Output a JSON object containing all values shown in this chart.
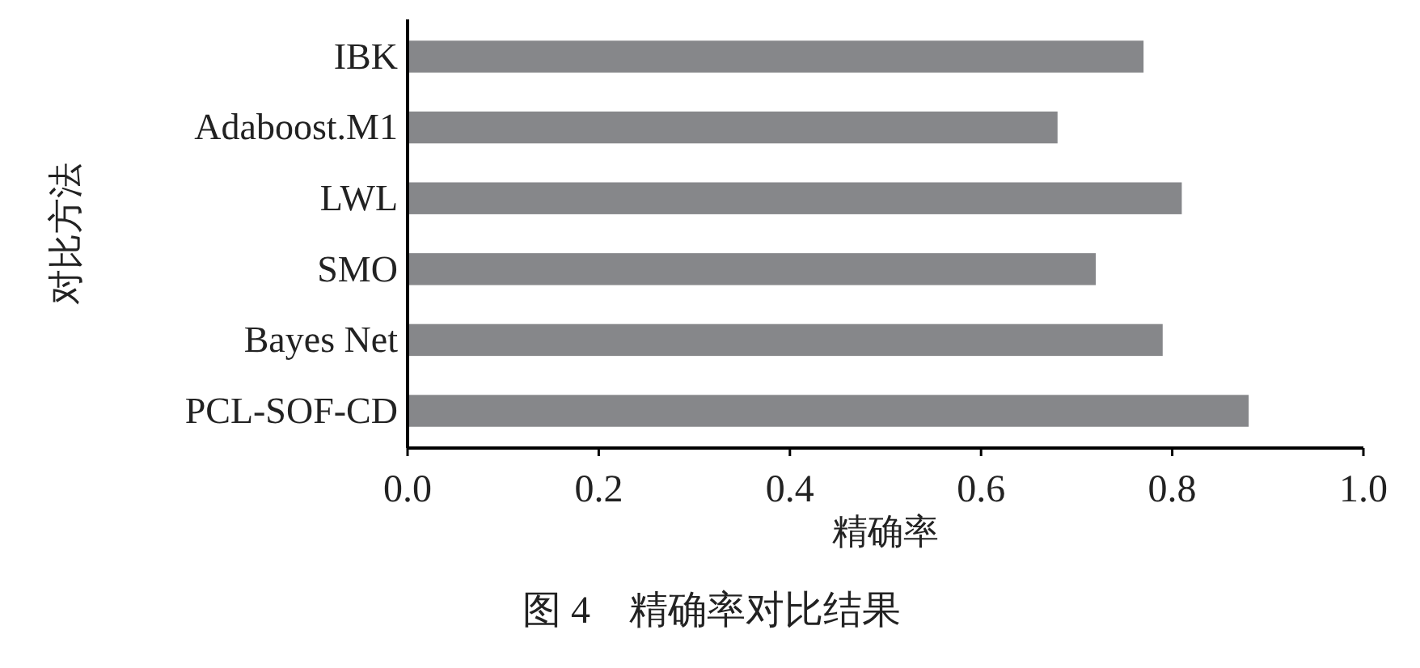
{
  "chart_data": {
    "type": "bar",
    "orientation": "horizontal",
    "categories": [
      "IBK",
      "Adaboost.M1",
      "LWL",
      "SMO",
      "Bayes Net",
      "PCL-SOF-CD"
    ],
    "values": [
      0.77,
      0.68,
      0.81,
      0.72,
      0.79,
      0.88
    ],
    "color": "#86878a",
    "xlim": [
      0,
      1
    ],
    "xticks": [
      {
        "value": 0,
        "label": "0.0"
      },
      0.2,
      0.4,
      0.6,
      0.8,
      {
        "value": 1,
        "label": "1.0"
      }
    ],
    "xlabel": "精确率",
    "ylabel": "对比方法",
    "annotations": [
      "图 4　精确率对比结果"
    ],
    "grid": false
  }
}
